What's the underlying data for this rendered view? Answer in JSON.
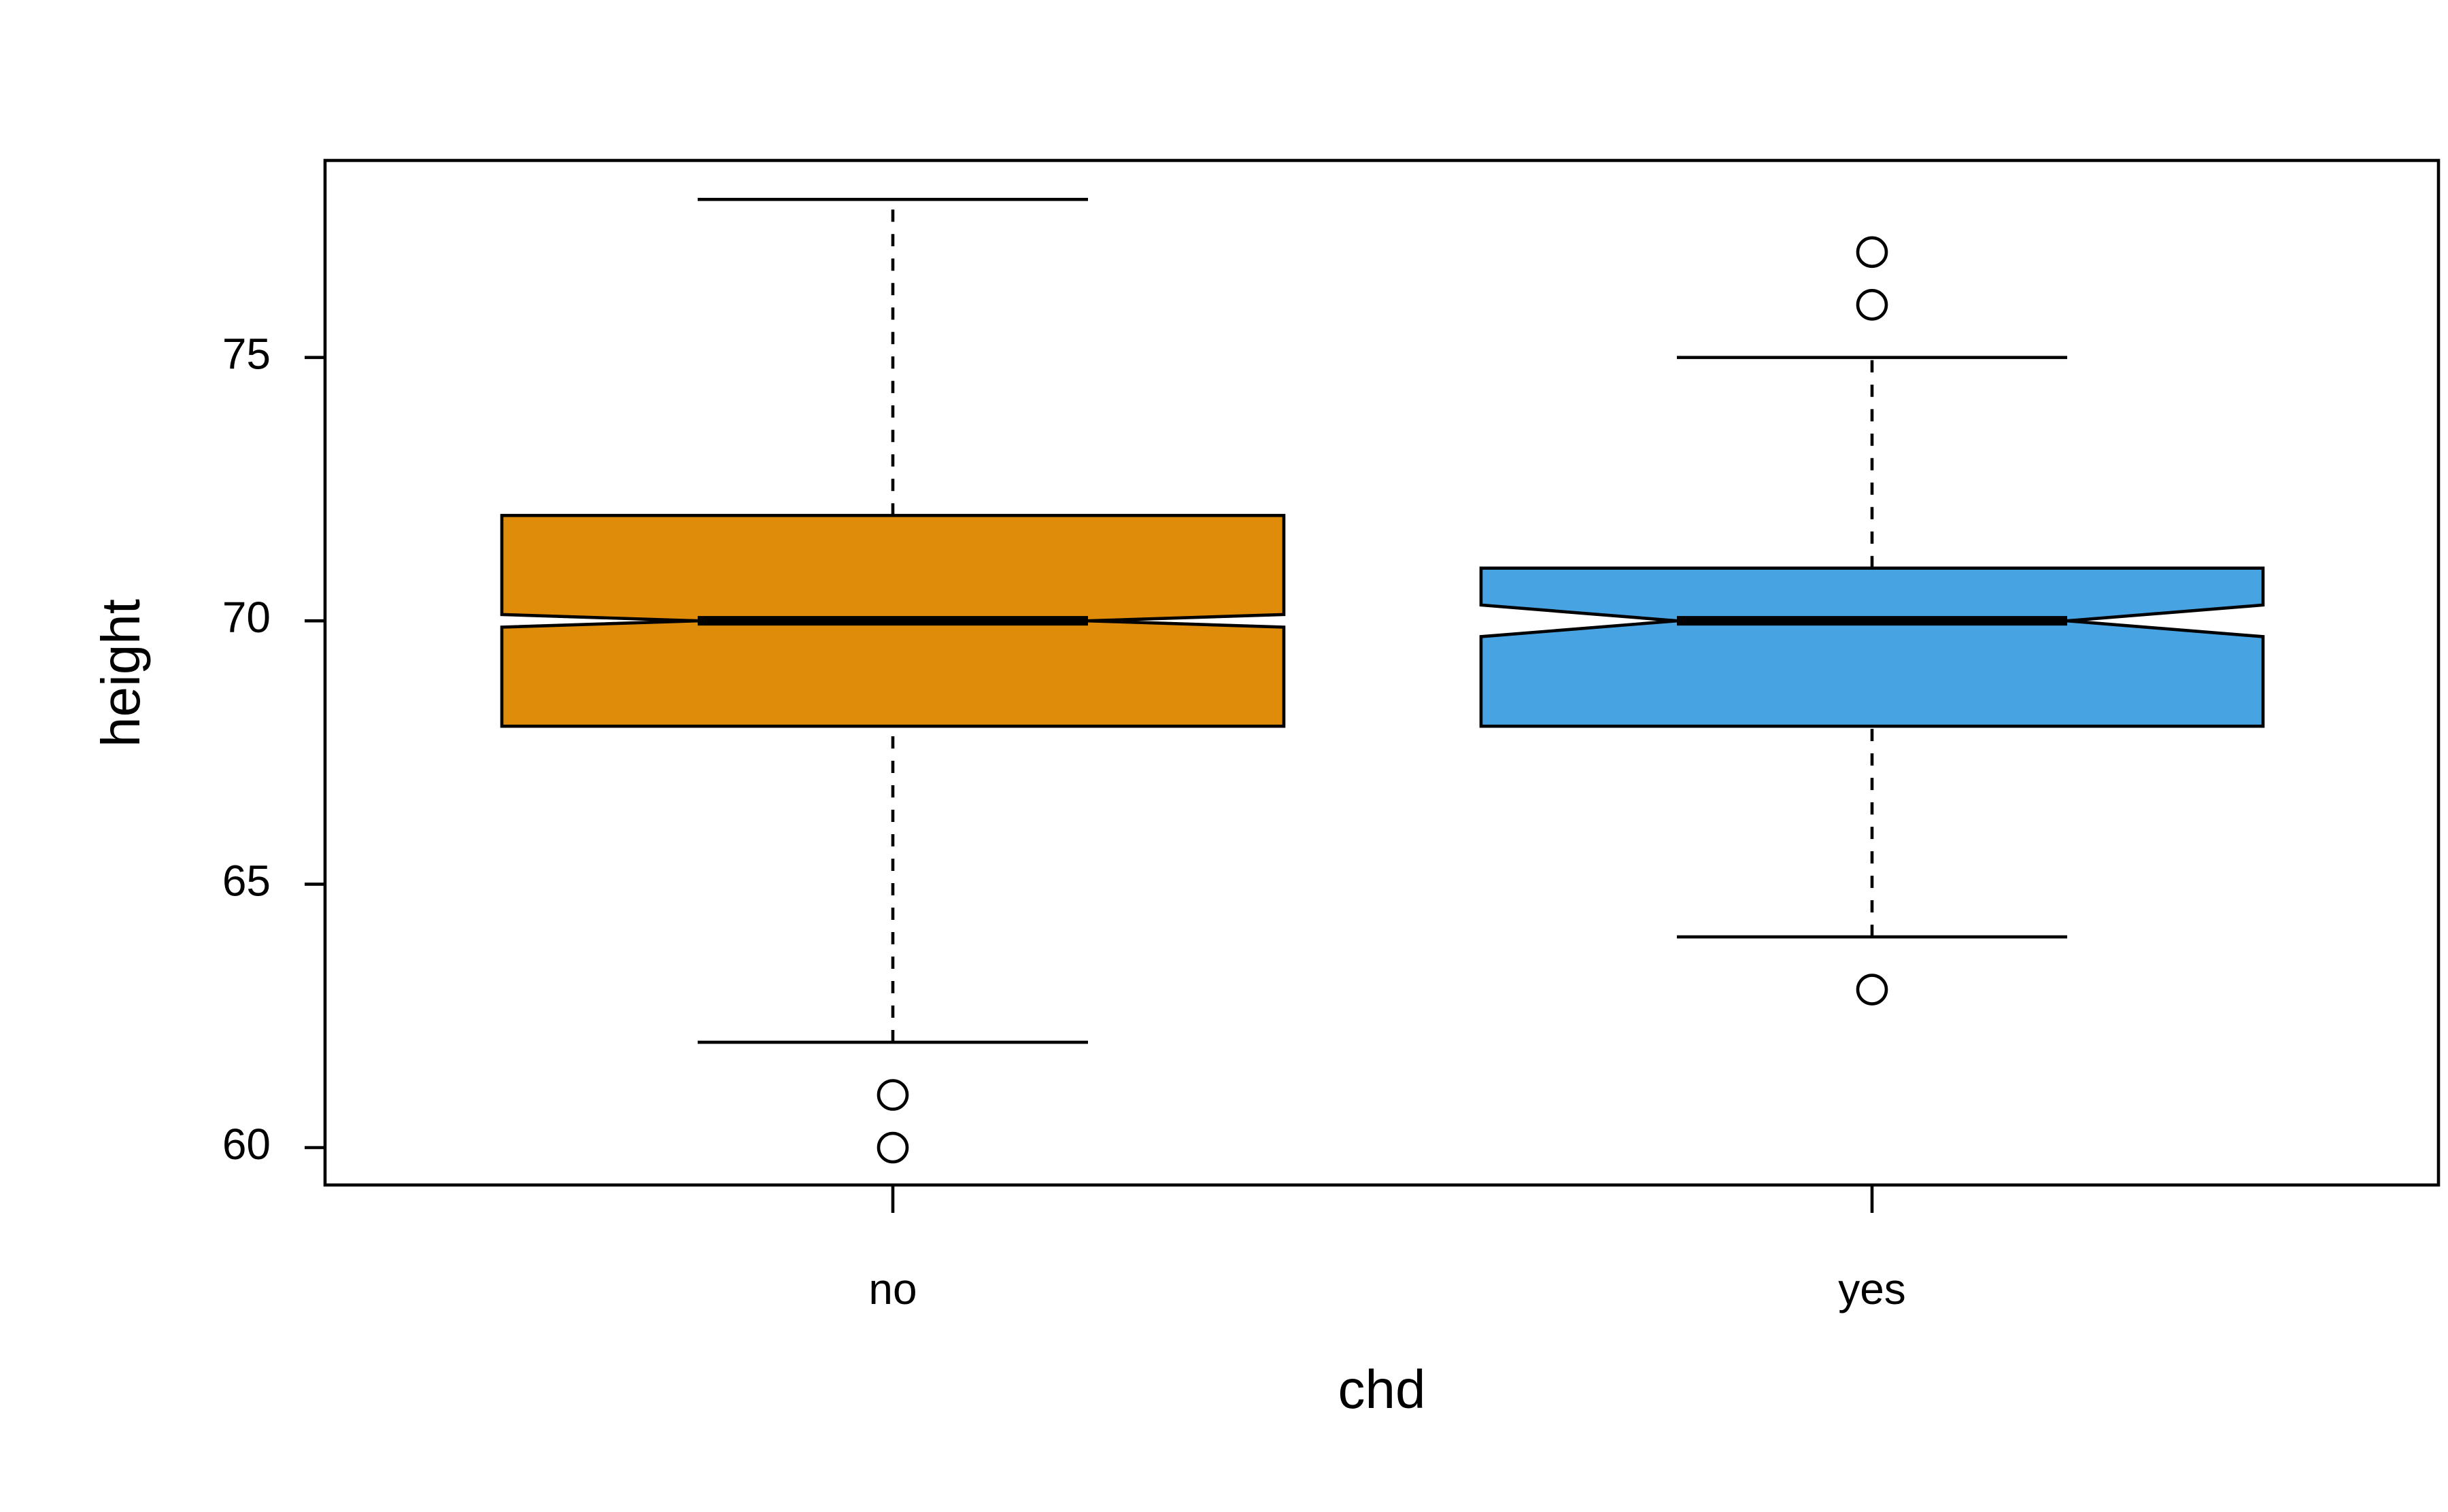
{
  "chart_data": {
    "type": "box",
    "x_label": "chd",
    "y_label": "height",
    "categories": [
      "no",
      "yes"
    ],
    "colors": [
      "#de8c09",
      "#47a3e1"
    ],
    "whisker_low": [
      62,
      64
    ],
    "q1": [
      68,
      68
    ],
    "median": [
      70,
      70
    ],
    "q3": [
      72,
      71
    ],
    "whisker_high": [
      78,
      75
    ],
    "notch_low": [
      69.88,
      69.7
    ],
    "notch_high": [
      70.12,
      70.3
    ],
    "outliers": [
      [
        61,
        60
      ],
      [
        77,
        76,
        63
      ]
    ],
    "ylim": [
      59.29,
      78.74
    ],
    "yticks": [
      60,
      65,
      70,
      75
    ]
  }
}
